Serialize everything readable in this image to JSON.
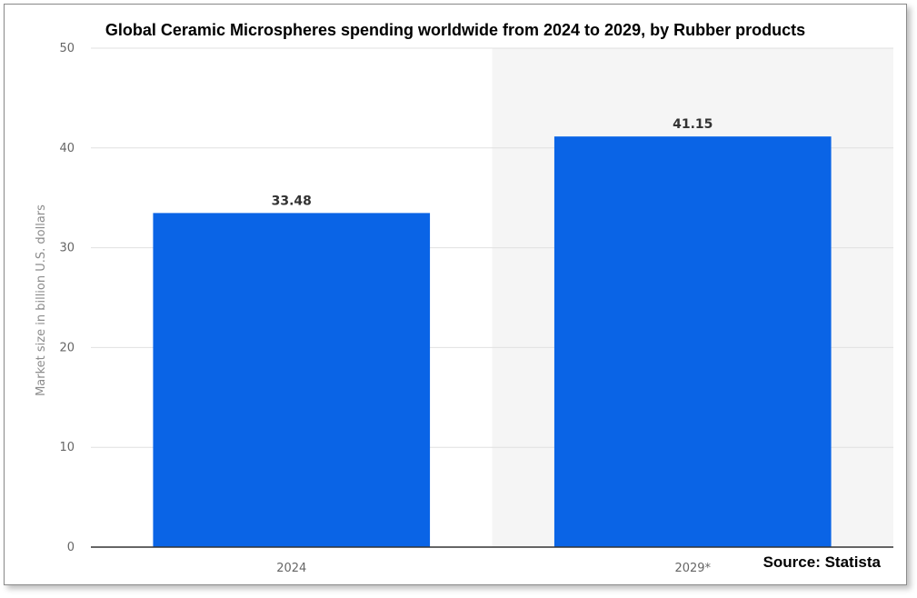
{
  "chart_data": {
    "type": "bar",
    "title": "Global Ceramic Microspheres spending worldwide from 2024 to 2029, by Rubber products",
    "categories": [
      "2024",
      "2029*"
    ],
    "values": [
      33.48,
      41.15
    ],
    "value_labels": [
      "33.48",
      "41.15"
    ],
    "xlabel": "",
    "ylabel": "Market size in billion U.S. dollars",
    "ylim": [
      0,
      50
    ],
    "yticks": [
      0,
      10,
      20,
      30,
      40,
      50
    ],
    "grid": true,
    "forecast_shading_from_category": 1,
    "colors": {
      "bar": "#0a64e6",
      "forecast_band": "#f5f5f5",
      "grid": "#e0e0e0",
      "axis": "#333333"
    },
    "source": "Source: Statista"
  }
}
